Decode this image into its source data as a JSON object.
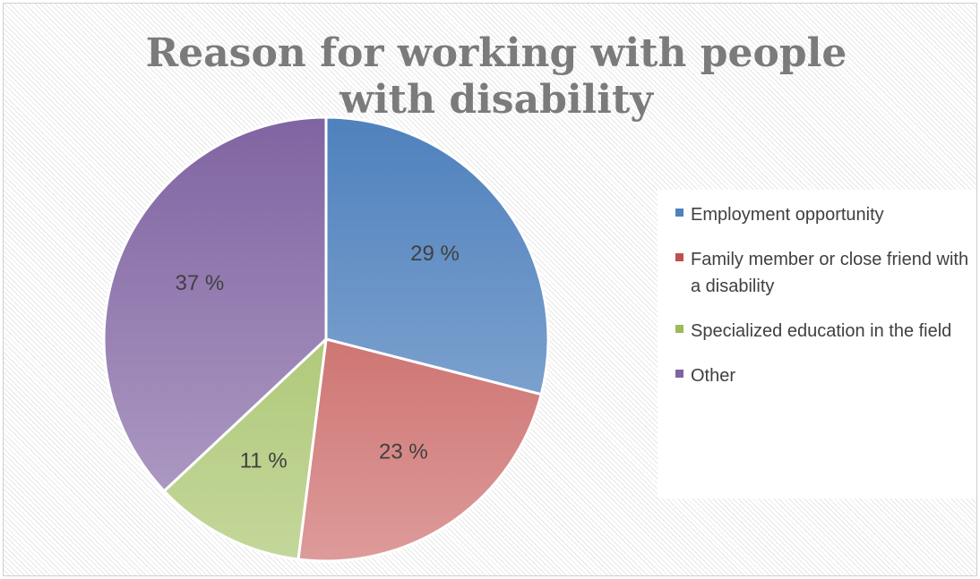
{
  "chart_data": {
    "type": "pie",
    "title": "Reason for working with people with disability",
    "legend_position": "right",
    "slices": [
      {
        "label": "Employment opportunity",
        "value": 29,
        "display": "29 %",
        "color": "#4f81bd",
        "color_light": "#95b3d7"
      },
      {
        "label": "Family member or close friend with a disability",
        "value": 23,
        "display": "23 %",
        "color": "#c0504d",
        "color_light": "#dd9b9a"
      },
      {
        "label": "Specialized education in the field",
        "value": 11,
        "display": "11 %",
        "color": "#9bbb59",
        "color_light": "#c4d79b"
      },
      {
        "label": "Other",
        "value": 37,
        "display": "37 %",
        "color": "#8064a2",
        "color_light": "#b3a2c7"
      }
    ]
  }
}
